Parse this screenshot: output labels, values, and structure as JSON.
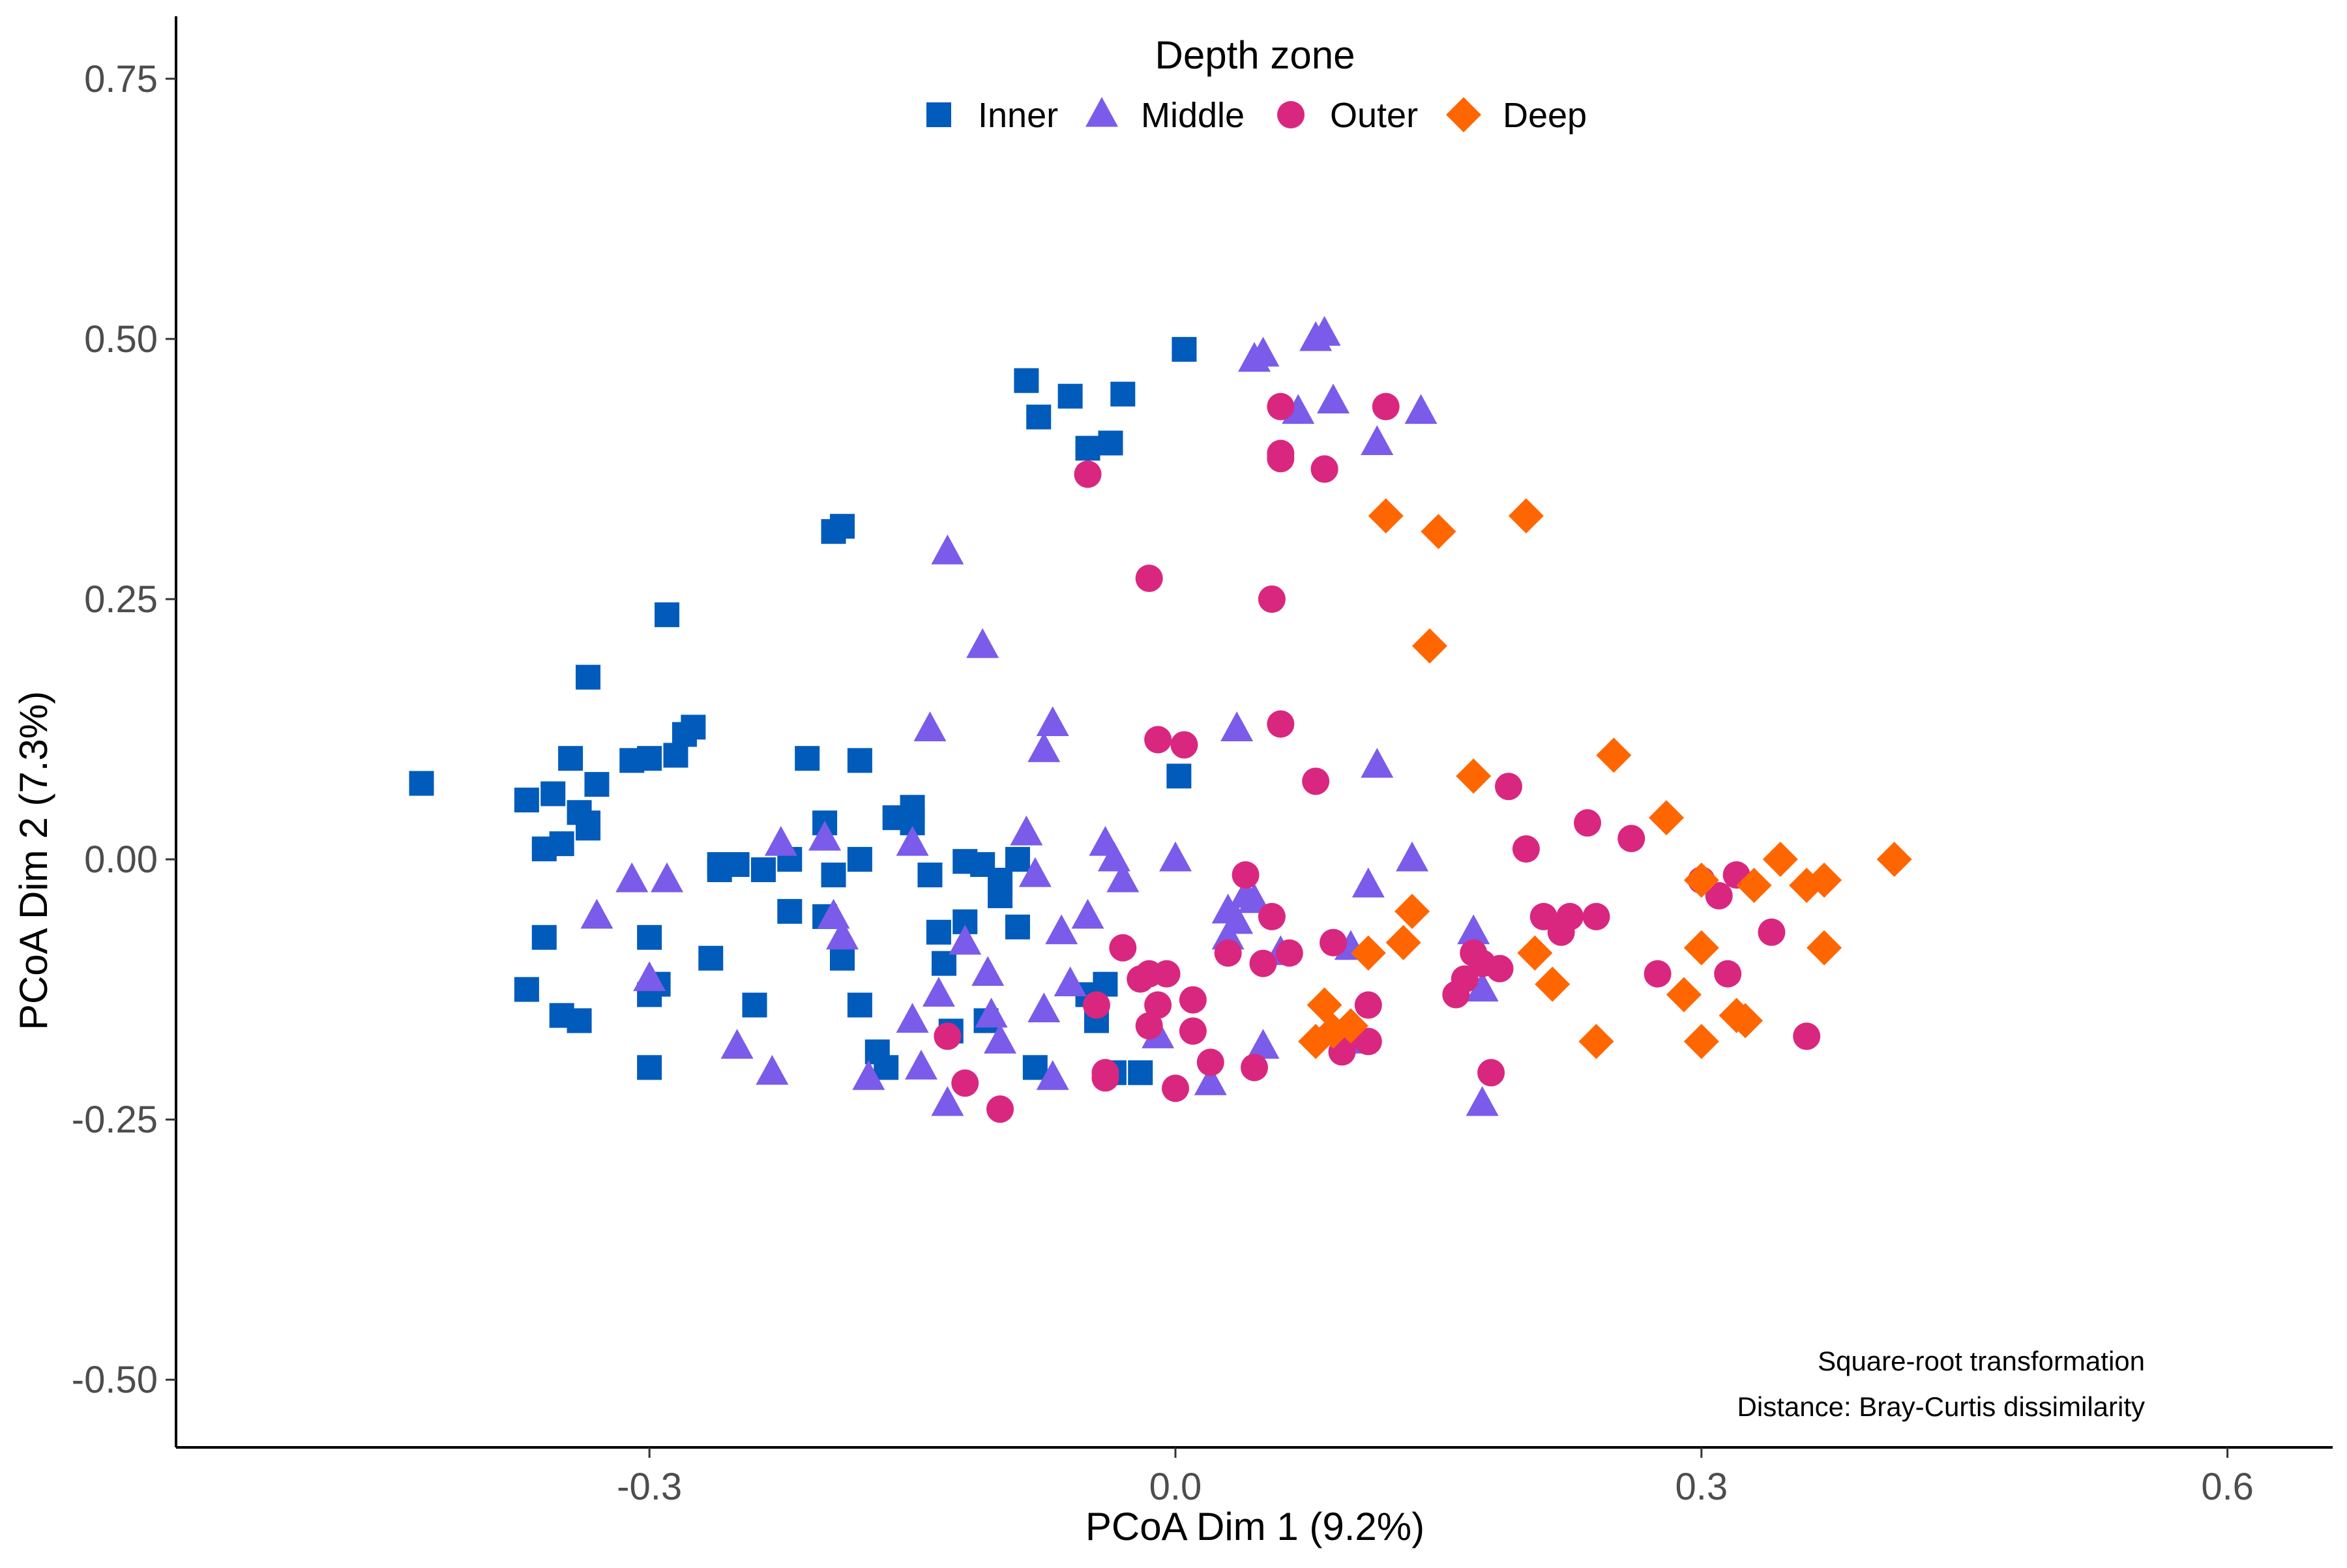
{
  "chart_data": {
    "type": "scatter",
    "xlabel": "PCoA Dim 1 (9.2%)",
    "ylabel": "PCoA Dim 2 (7.3%)",
    "xlim": [
      -0.57,
      0.66
    ],
    "ylim": [
      -0.565,
      0.81
    ],
    "xticks": [
      -0.3,
      0.0,
      0.3,
      0.6
    ],
    "xtick_labels": [
      "-0.3",
      "0.0",
      "0.3",
      "0.6"
    ],
    "yticks": [
      -0.5,
      -0.25,
      0.0,
      0.25,
      0.5,
      0.75
    ],
    "ytick_labels": [
      "-0.50",
      "-0.25",
      "0.00",
      "0.25",
      "0.50",
      "0.75"
    ],
    "grid": false,
    "legend": {
      "title": "Depth zone",
      "position": "top-center"
    },
    "annotations": [
      "Square-root transformation",
      "Distance: Bray-Curtis dissimilarity"
    ],
    "series": [
      {
        "name": "Inner",
        "shape": "square",
        "color": "#005BBB",
        "x": [
          -0.43,
          -0.37,
          -0.36,
          -0.36,
          -0.355,
          -0.35,
          -0.345,
          -0.34,
          -0.335,
          -0.335,
          -0.33,
          -0.31,
          -0.3,
          -0.3,
          -0.295,
          -0.29,
          -0.285,
          -0.28,
          -0.275,
          -0.265,
          -0.26,
          -0.25,
          -0.235,
          -0.22,
          -0.22,
          -0.21,
          -0.2,
          -0.2,
          -0.195,
          -0.19,
          -0.18,
          -0.18,
          -0.17,
          -0.16,
          -0.15,
          -0.15,
          -0.14,
          -0.135,
          -0.132,
          -0.128,
          -0.12,
          -0.12,
          -0.11,
          -0.108,
          -0.1,
          -0.1,
          -0.09,
          -0.09,
          -0.08,
          -0.078,
          -0.06,
          -0.05,
          -0.04,
          -0.037,
          -0.03,
          -0.035,
          -0.02,
          0.002,
          0.005,
          -0.085,
          -0.045,
          -0.05,
          -0.165,
          -0.195,
          -0.34,
          -0.37,
          -0.35,
          -0.3,
          -0.335,
          -0.26,
          -0.24,
          -0.19,
          -0.18,
          -0.3
        ],
        "y": [
          0.073,
          0.057,
          0.01,
          -0.075,
          0.063,
          0.015,
          0.097,
          0.045,
          0.03,
          0.035,
          0.072,
          0.095,
          -0.075,
          0.097,
          -0.12,
          0.235,
          0.1,
          0.12,
          0.127,
          -0.095,
          -0.005,
          -0.005,
          -0.01,
          0.0,
          -0.05,
          0.097,
          -0.055,
          0.035,
          -0.015,
          -0.095,
          -0.14,
          0.095,
          -0.185,
          0.04,
          0.035,
          0.05,
          -0.015,
          -0.07,
          -0.1,
          -0.165,
          -0.06,
          -0.002,
          -0.005,
          -0.155,
          -0.02,
          -0.035,
          0.0,
          -0.065,
          -0.2,
          0.425,
          0.445,
          0.395,
          -0.12,
          0.4,
          0.447,
          -0.205,
          -0.205,
          0.08,
          0.49,
          0.46,
          -0.155,
          -0.13,
          -0.2,
          0.315,
          -0.155,
          -0.125,
          -0.15,
          -0.2,
          0.175,
          -0.01,
          -0.14,
          0.32,
          0.0,
          -0.13
        ]
      },
      {
        "name": "Middle",
        "shape": "triangle",
        "color": "#7B5BEA",
        "x": [
          -0.33,
          -0.31,
          -0.3,
          -0.29,
          -0.25,
          -0.23,
          -0.225,
          -0.2,
          -0.195,
          -0.19,
          -0.175,
          -0.15,
          -0.15,
          -0.145,
          -0.14,
          -0.135,
          -0.13,
          -0.12,
          -0.11,
          -0.107,
          -0.105,
          -0.1,
          -0.085,
          -0.08,
          -0.075,
          -0.075,
          -0.07,
          -0.065,
          -0.06,
          -0.05,
          -0.04,
          -0.035,
          -0.03,
          -0.01,
          0.0,
          0.03,
          0.035,
          0.04,
          0.045,
          0.05,
          0.07,
          0.08,
          0.085,
          0.1,
          0.105,
          0.11,
          0.115,
          0.14,
          0.17,
          0.175,
          0.175,
          0.06,
          0.1,
          0.115,
          0.03,
          0.045,
          0.135,
          0.05,
          0.035,
          0.02,
          -0.07,
          -0.13,
          0.09
        ],
        "y": [
          -0.055,
          -0.02,
          -0.115,
          -0.02,
          -0.18,
          -0.205,
          0.015,
          0.02,
          -0.055,
          -0.075,
          -0.21,
          0.015,
          -0.155,
          -0.2,
          0.125,
          -0.13,
          0.295,
          -0.08,
          0.205,
          -0.11,
          -0.15,
          -0.175,
          0.025,
          -0.015,
          -0.145,
          0.105,
          0.13,
          -0.07,
          -0.12,
          -0.055,
          0.015,
          0.0,
          -0.02,
          -0.17,
          0.0,
          -0.05,
          0.125,
          -0.035,
          0.48,
          0.485,
          0.43,
          0.5,
          0.505,
          -0.085,
          -0.175,
          -0.025,
          0.4,
          0.43,
          -0.07,
          -0.125,
          -0.235,
          -0.09,
          -0.17,
          0.09,
          -0.075,
          -0.04,
          0.0,
          -0.18,
          -0.06,
          -0.215,
          -0.21,
          -0.235,
          0.44
        ]
      },
      {
        "name": "Outer",
        "shape": "circle",
        "color": "#D9277F",
        "x": [
          -0.13,
          -0.12,
          -0.1,
          -0.05,
          -0.045,
          -0.04,
          -0.03,
          -0.02,
          -0.015,
          -0.015,
          -0.01,
          -0.005,
          0.0,
          0.005,
          0.01,
          0.02,
          0.04,
          0.045,
          0.05,
          0.055,
          0.06,
          0.06,
          0.065,
          0.08,
          0.085,
          0.09,
          0.095,
          0.1,
          0.11,
          0.11,
          0.12,
          0.16,
          0.165,
          0.17,
          0.175,
          0.18,
          0.185,
          0.19,
          0.2,
          0.21,
          0.22,
          0.225,
          0.235,
          0.24,
          0.26,
          0.275,
          0.3,
          0.31,
          0.315,
          0.32,
          0.34,
          0.36,
          0.085,
          -0.04,
          -0.015,
          -0.01,
          0.01,
          0.03,
          0.055,
          0.06,
          0.06
        ],
        "y": [
          -0.17,
          -0.215,
          -0.24,
          0.37,
          -0.14,
          -0.205,
          -0.085,
          -0.115,
          -0.16,
          0.27,
          0.115,
          -0.11,
          -0.22,
          0.11,
          -0.135,
          -0.195,
          -0.015,
          -0.2,
          -0.1,
          0.25,
          0.13,
          0.435,
          -0.09,
          0.075,
          0.375,
          -0.08,
          -0.185,
          -0.17,
          -0.14,
          -0.175,
          0.435,
          -0.13,
          -0.115,
          -0.09,
          -0.1,
          -0.205,
          -0.105,
          0.07,
          0.01,
          -0.055,
          -0.07,
          -0.055,
          0.035,
          -0.055,
          0.02,
          -0.11,
          -0.02,
          -0.035,
          -0.11,
          -0.015,
          -0.07,
          -0.17,
          0.375,
          -0.21,
          -0.11,
          -0.14,
          -0.165,
          -0.09,
          -0.055,
          0.39,
          0.385
        ]
      },
      {
        "name": "Deep",
        "shape": "diamond",
        "color": "#FF6600",
        "x": [
          0.08,
          0.085,
          0.09,
          0.1,
          0.11,
          0.12,
          0.13,
          0.135,
          0.145,
          0.15,
          0.17,
          0.2,
          0.205,
          0.215,
          0.24,
          0.25,
          0.28,
          0.29,
          0.3,
          0.3,
          0.3,
          0.32,
          0.325,
          0.33,
          0.345,
          0.36,
          0.37,
          0.37,
          0.41
        ],
        "y": [
          -0.175,
          -0.14,
          -0.165,
          -0.16,
          -0.09,
          0.33,
          -0.08,
          -0.05,
          0.205,
          0.315,
          0.08,
          0.33,
          -0.09,
          -0.12,
          -0.175,
          0.1,
          0.04,
          -0.13,
          -0.085,
          -0.175,
          -0.02,
          -0.15,
          -0.155,
          -0.025,
          0.0,
          -0.025,
          -0.085,
          -0.02,
          0.0
        ]
      }
    ]
  }
}
